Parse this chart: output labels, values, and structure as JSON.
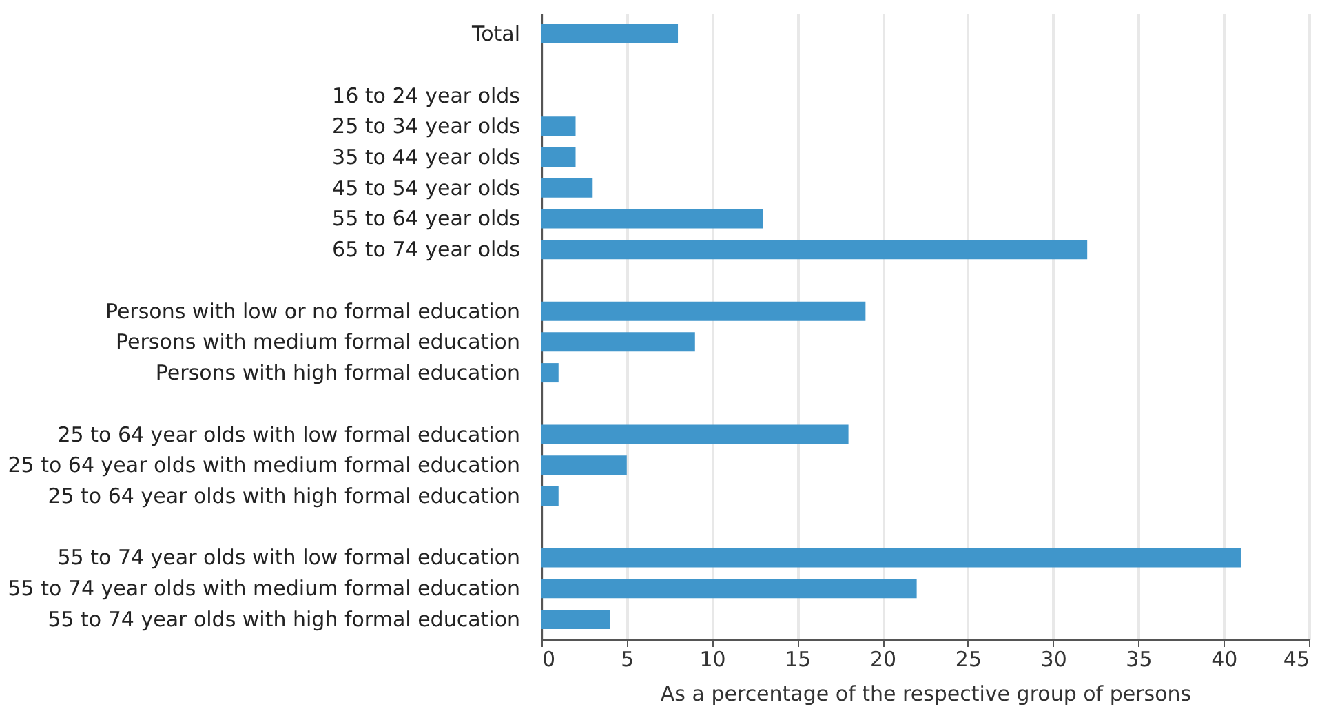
{
  "chart_data": {
    "type": "bar",
    "orientation": "horizontal",
    "xlabel": "As a percentage of the respective group of persons",
    "categories": [
      "Total",
      null,
      "16 to 24 year olds",
      "25 to 34 year olds",
      "35 to 44 year olds",
      "45 to 54 year olds",
      "55 to 64 year olds",
      "65 to 74 year olds",
      null,
      "Persons with low or no formal education",
      "Persons with medium formal education",
      "Persons with high formal education",
      null,
      "25 to 64 year olds with low formal education",
      "25 to 64 year olds with medium formal education",
      "25 to 64 year olds with high formal education",
      null,
      "55 to 74 year olds with low formal education",
      "55 to 74 year olds with medium formal education",
      "55 to 74 year olds with high formal education"
    ],
    "values": [
      8,
      null,
      null,
      2,
      2,
      3,
      13,
      32,
      null,
      19,
      9,
      1,
      null,
      18,
      5,
      1,
      null,
      41,
      22,
      4
    ],
    "color": "#4096cb",
    "xlim": [
      0,
      45
    ],
    "xticks": [
      0,
      5,
      10,
      15,
      20,
      25,
      30,
      35,
      40,
      45
    ],
    "grid": "x"
  }
}
